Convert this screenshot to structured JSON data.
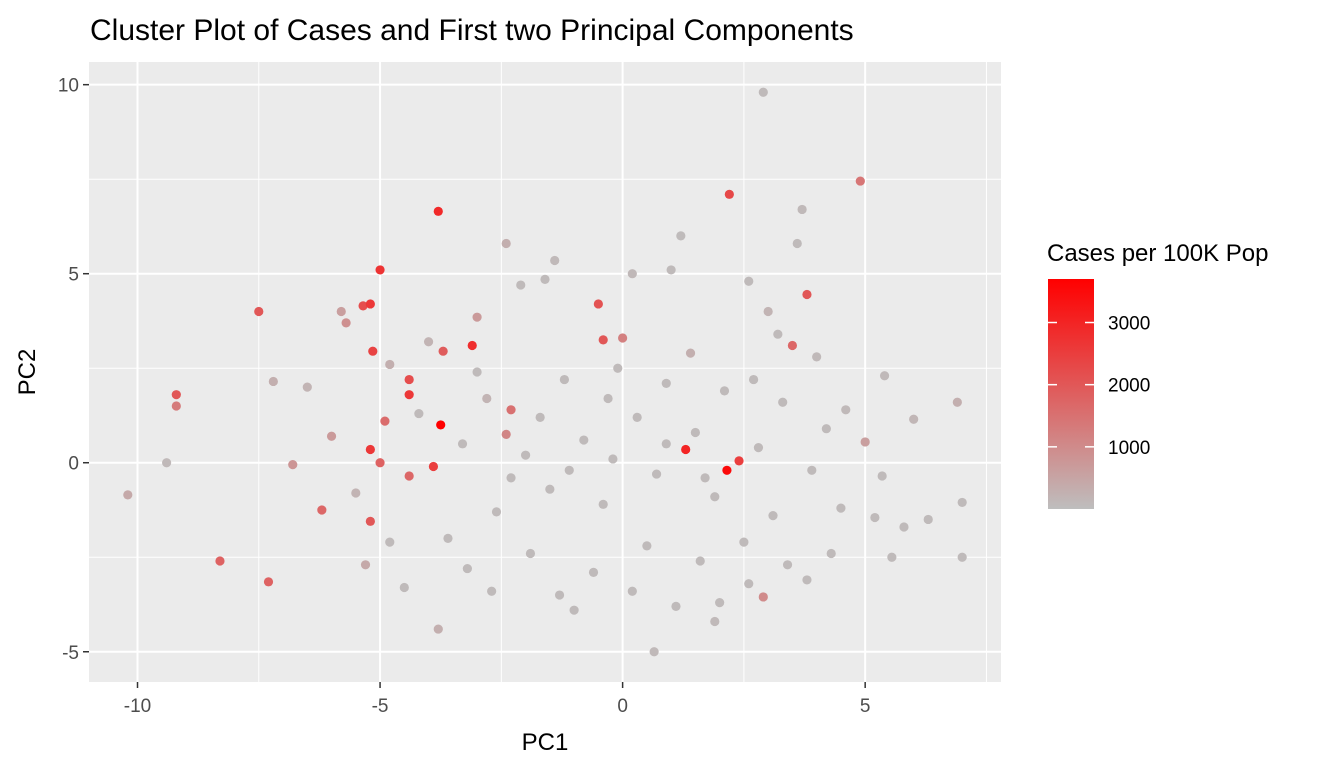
{
  "chart_data": {
    "type": "scatter",
    "title": "Cluster Plot of Cases and First two Principal Components",
    "xlabel": "PC1",
    "ylabel": "PC2",
    "xlim": [
      -11.0,
      7.8
    ],
    "ylim": [
      -5.8,
      10.6
    ],
    "x_ticks": [
      -10,
      -5,
      0,
      5
    ],
    "x_tick_labels": [
      "-10",
      "-5",
      "0",
      "5"
    ],
    "y_ticks": [
      -5,
      0,
      5,
      10
    ],
    "y_tick_labels": [
      "-5",
      "0",
      "5",
      "10"
    ],
    "grid": true,
    "legend": {
      "title": "Cases per 100K Pop",
      "placement": "right",
      "scale": "continuous",
      "range": [
        0,
        3700
      ],
      "ticks": [
        1000,
        2000,
        3000
      ],
      "tick_labels": [
        "1000",
        "2000",
        "3000"
      ],
      "low_color": "#bebebe",
      "high_color": "#ff0000"
    },
    "colors": {
      "panel_bg": "#ebebeb",
      "grid": "#ffffff"
    },
    "points": [
      {
        "x": 2.9,
        "y": 9.8,
        "cases": 80
      },
      {
        "x": 4.9,
        "y": 7.45,
        "cases": 1400
      },
      {
        "x": 2.2,
        "y": 7.1,
        "cases": 2300
      },
      {
        "x": -3.8,
        "y": 6.65,
        "cases": 2900
      },
      {
        "x": 3.7,
        "y": 6.7,
        "cases": 100
      },
      {
        "x": -2.4,
        "y": 5.8,
        "cases": 300
      },
      {
        "x": 1.2,
        "y": 6.0,
        "cases": 60
      },
      {
        "x": -5.0,
        "y": 5.1,
        "cases": 2700
      },
      {
        "x": -1.4,
        "y": 5.35,
        "cases": 90
      },
      {
        "x": 0.2,
        "y": 5.0,
        "cases": 120
      },
      {
        "x": -7.5,
        "y": 4.0,
        "cases": 2000
      },
      {
        "x": -5.2,
        "y": 4.2,
        "cases": 2600
      },
      {
        "x": -5.35,
        "y": 4.15,
        "cases": 2200
      },
      {
        "x": -0.5,
        "y": 4.2,
        "cases": 2100
      },
      {
        "x": 3.8,
        "y": 4.45,
        "cases": 2000
      },
      {
        "x": 3.0,
        "y": 4.0,
        "cases": 200
      },
      {
        "x": -5.8,
        "y": 4.0,
        "cases": 600
      },
      {
        "x": -5.7,
        "y": 3.7,
        "cases": 900
      },
      {
        "x": -3.0,
        "y": 3.85,
        "cases": 700
      },
      {
        "x": -3.1,
        "y": 3.1,
        "cases": 2800
      },
      {
        "x": -5.15,
        "y": 2.95,
        "cases": 2400
      },
      {
        "x": -3.7,
        "y": 2.95,
        "cases": 1900
      },
      {
        "x": -0.4,
        "y": 3.25,
        "cases": 2000
      },
      {
        "x": 0.0,
        "y": 3.3,
        "cases": 1200
      },
      {
        "x": 3.5,
        "y": 3.1,
        "cases": 1700
      },
      {
        "x": -4.4,
        "y": 2.2,
        "cases": 2200
      },
      {
        "x": -4.4,
        "y": 1.8,
        "cases": 2600
      },
      {
        "x": -9.2,
        "y": 1.8,
        "cases": 2000
      },
      {
        "x": -9.2,
        "y": 1.5,
        "cases": 1300
      },
      {
        "x": -7.2,
        "y": 2.15,
        "cases": 300
      },
      {
        "x": -6.5,
        "y": 2.0,
        "cases": 200
      },
      {
        "x": 5.4,
        "y": 2.3,
        "cases": 100
      },
      {
        "x": 6.9,
        "y": 1.6,
        "cases": 300
      },
      {
        "x": 6.0,
        "y": 1.15,
        "cases": 150
      },
      {
        "x": -3.75,
        "y": 1.0,
        "cases": 3700
      },
      {
        "x": -2.3,
        "y": 1.4,
        "cases": 1500
      },
      {
        "x": -4.9,
        "y": 1.1,
        "cases": 1600
      },
      {
        "x": -2.4,
        "y": 0.75,
        "cases": 1100
      },
      {
        "x": 1.3,
        "y": 0.35,
        "cases": 3000
      },
      {
        "x": 2.4,
        "y": 0.05,
        "cases": 2500
      },
      {
        "x": 2.15,
        "y": -0.2,
        "cases": 3500
      },
      {
        "x": -5.2,
        "y": 0.35,
        "cases": 2600
      },
      {
        "x": -5.0,
        "y": 0.0,
        "cases": 1800
      },
      {
        "x": -3.9,
        "y": -0.1,
        "cases": 2500
      },
      {
        "x": -4.4,
        "y": -0.35,
        "cases": 1700
      },
      {
        "x": -9.4,
        "y": 0.0,
        "cases": 90
      },
      {
        "x": -10.2,
        "y": -0.85,
        "cases": 400
      },
      {
        "x": -8.3,
        "y": -2.6,
        "cases": 1800
      },
      {
        "x": -7.3,
        "y": -3.15,
        "cases": 1800
      },
      {
        "x": -6.2,
        "y": -1.25,
        "cases": 1700
      },
      {
        "x": -5.2,
        "y": -1.55,
        "cases": 2000
      },
      {
        "x": -5.3,
        "y": -2.7,
        "cases": 400
      },
      {
        "x": -3.8,
        "y": -4.4,
        "cases": 300
      },
      {
        "x": 0.65,
        "y": -5.0,
        "cases": 100
      },
      {
        "x": 1.9,
        "y": -4.2,
        "cases": 100
      },
      {
        "x": 2.9,
        "y": -3.55,
        "cases": 1000
      },
      {
        "x": 7.0,
        "y": -2.5,
        "cases": 80
      },
      {
        "x": 7.0,
        "y": -1.05,
        "cases": 80
      },
      {
        "x": 6.3,
        "y": -1.5,
        "cases": 80
      },
      {
        "x": 5.8,
        "y": -1.7,
        "cases": 80
      },
      {
        "x": 5.55,
        "y": -2.5,
        "cases": 80
      },
      {
        "x": 5.2,
        "y": -1.45,
        "cases": 80
      },
      {
        "x": 5.35,
        "y": -0.35,
        "cases": 80
      },
      {
        "x": 5.0,
        "y": 0.55,
        "cases": 600
      },
      {
        "x": 4.6,
        "y": 1.4,
        "cases": 100
      },
      {
        "x": 4.0,
        "y": 2.8,
        "cases": 100
      },
      {
        "x": 4.3,
        "y": -2.4,
        "cases": 80
      },
      {
        "x": 3.8,
        "y": -3.1,
        "cases": 80
      },
      {
        "x": 2.0,
        "y": -3.7,
        "cases": 80
      },
      {
        "x": -1.3,
        "y": -3.5,
        "cases": 80
      },
      {
        "x": -2.7,
        "y": -3.4,
        "cases": 80
      },
      {
        "x": -4.5,
        "y": -3.3,
        "cases": 80
      },
      {
        "x": -6.8,
        "y": -0.05,
        "cases": 800
      },
      {
        "x": -6.0,
        "y": 0.7,
        "cases": 700
      },
      {
        "x": -4.8,
        "y": 2.6,
        "cases": 300
      },
      {
        "x": -4.0,
        "y": 3.2,
        "cases": 200
      },
      {
        "x": -2.1,
        "y": 4.7,
        "cases": 80
      },
      {
        "x": -1.6,
        "y": 4.85,
        "cases": 80
      },
      {
        "x": 1.0,
        "y": 5.1,
        "cases": 80
      },
      {
        "x": 2.6,
        "y": 4.8,
        "cases": 80
      },
      {
        "x": 3.6,
        "y": 5.8,
        "cases": 80
      },
      {
        "x": 3.2,
        "y": 3.4,
        "cases": 80
      },
      {
        "x": 2.7,
        "y": 2.2,
        "cases": 80
      },
      {
        "x": 1.4,
        "y": 2.9,
        "cases": 300
      },
      {
        "x": -0.1,
        "y": 2.5,
        "cases": 80
      },
      {
        "x": -1.2,
        "y": 2.2,
        "cases": 80
      },
      {
        "x": -2.8,
        "y": 1.7,
        "cases": 200
      },
      {
        "x": -3.3,
        "y": 0.5,
        "cases": 80
      },
      {
        "x": -2.0,
        "y": 0.2,
        "cases": 80
      },
      {
        "x": -0.8,
        "y": 0.6,
        "cases": 80
      },
      {
        "x": 0.3,
        "y": 1.2,
        "cases": 80
      },
      {
        "x": 1.5,
        "y": 0.8,
        "cases": 80
      },
      {
        "x": 2.8,
        "y": 0.4,
        "cases": 80
      },
      {
        "x": 3.9,
        "y": -0.2,
        "cases": 80
      },
      {
        "x": 3.1,
        "y": -1.4,
        "cases": 80
      },
      {
        "x": 1.9,
        "y": -0.9,
        "cases": 80
      },
      {
        "x": 0.7,
        "y": -0.3,
        "cases": 80
      },
      {
        "x": -0.4,
        "y": -1.1,
        "cases": 80
      },
      {
        "x": -1.5,
        "y": -0.7,
        "cases": 80
      },
      {
        "x": -2.6,
        "y": -1.3,
        "cases": 80
      },
      {
        "x": -3.6,
        "y": -2.0,
        "cases": 80
      },
      {
        "x": -1.9,
        "y": -2.4,
        "cases": 80
      },
      {
        "x": -0.6,
        "y": -2.9,
        "cases": 80
      },
      {
        "x": 0.5,
        "y": -2.2,
        "cases": 80
      },
      {
        "x": 1.6,
        "y": -2.6,
        "cases": 80
      },
      {
        "x": 2.5,
        "y": -2.1,
        "cases": 80
      },
      {
        "x": 3.4,
        "y": -2.7,
        "cases": 80
      },
      {
        "x": 4.5,
        "y": -1.2,
        "cases": 80
      },
      {
        "x": 4.2,
        "y": 0.9,
        "cases": 80
      },
      {
        "x": 3.3,
        "y": 1.6,
        "cases": 80
      },
      {
        "x": 2.1,
        "y": 1.9,
        "cases": 80
      },
      {
        "x": 0.9,
        "y": 2.1,
        "cases": 80
      },
      {
        "x": -0.3,
        "y": 1.7,
        "cases": 80
      },
      {
        "x": -1.7,
        "y": 1.2,
        "cases": 80
      },
      {
        "x": -3.0,
        "y": 2.4,
        "cases": 80
      },
      {
        "x": -4.2,
        "y": 1.3,
        "cases": 80
      },
      {
        "x": -5.5,
        "y": -0.8,
        "cases": 200
      },
      {
        "x": -4.8,
        "y": -2.1,
        "cases": 80
      },
      {
        "x": -3.2,
        "y": -2.8,
        "cases": 80
      },
      {
        "x": -1.0,
        "y": -3.9,
        "cases": 80
      },
      {
        "x": 0.2,
        "y": -3.4,
        "cases": 80
      },
      {
        "x": 1.1,
        "y": -3.8,
        "cases": 80
      },
      {
        "x": 2.6,
        "y": -3.2,
        "cases": 80
      },
      {
        "x": -0.2,
        "y": 0.1,
        "cases": 80
      },
      {
        "x": 0.9,
        "y": 0.5,
        "cases": 80
      },
      {
        "x": 1.7,
        "y": -0.4,
        "cases": 80
      },
      {
        "x": -1.1,
        "y": -0.2,
        "cases": 80
      },
      {
        "x": -2.3,
        "y": -0.4,
        "cases": 80
      }
    ]
  }
}
